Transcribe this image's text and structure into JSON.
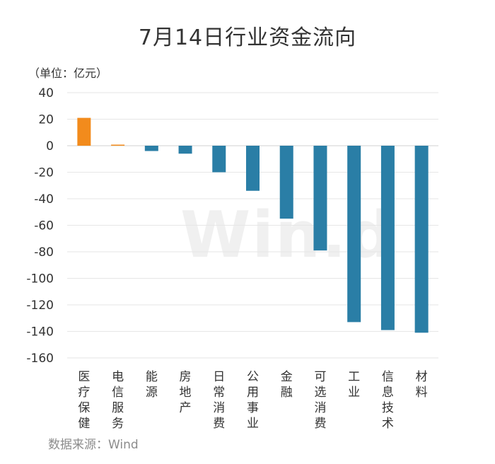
{
  "title": "7月14日行业资金流向",
  "unit_label": "（单位：亿元）",
  "source": "数据来源：Wind",
  "watermark": "Win.d",
  "colors": {
    "positive": "#f28b1c",
    "negative": "#2a7ea6",
    "grid": "#e6e6e6",
    "tick": "#333333"
  },
  "chart_data": {
    "type": "bar",
    "title": "7月14日行业资金流向",
    "xlabel": "",
    "ylabel": "（单位：亿元）",
    "ylim": [
      -160,
      40
    ],
    "yticks": [
      40,
      20,
      0,
      -20,
      -40,
      -60,
      -80,
      -100,
      -120,
      -140,
      -160
    ],
    "grid": true,
    "categories": [
      "医疗保健",
      "电信服务",
      "能源",
      "房地产",
      "日常消费",
      "公用事业",
      "金融",
      "可选消费",
      "工业",
      "信息技术",
      "材料"
    ],
    "values": [
      21,
      0.8,
      -4,
      -6,
      -20,
      -34,
      -55,
      -79,
      -133,
      -139,
      -141
    ]
  }
}
